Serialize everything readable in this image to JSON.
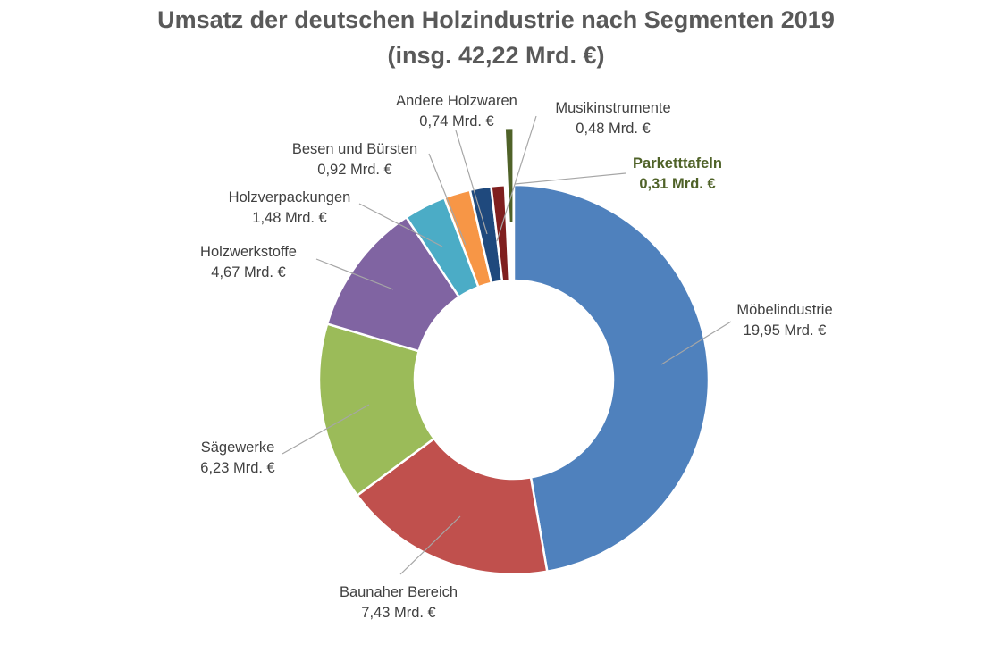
{
  "chart_data": {
    "type": "pie",
    "variant": "doughnut",
    "title": "Umsatz der deutschen Holzindustrie nach Segmenten 2019",
    "subtitle": "(insg. 42,22 Mrd. €)",
    "unit": "Mrd. €",
    "legend": "none",
    "slices": [
      {
        "name": "Möbelindustrie",
        "value": 19.95,
        "label": "19,95 Mrd. €",
        "color": "#4F81BD"
      },
      {
        "name": "Baunaher Bereich",
        "value": 7.43,
        "label": "7,43 Mrd. €",
        "color": "#C0504D"
      },
      {
        "name": "Sägewerke",
        "value": 6.23,
        "label": "6,23 Mrd. €",
        "color": "#9BBB59"
      },
      {
        "name": "Holzwerkstoffe",
        "value": 4.67,
        "label": "4,67 Mrd. €",
        "color": "#8064A2"
      },
      {
        "name": "Holzverpackungen",
        "value": 1.48,
        "label": "1,48 Mrd. €",
        "color": "#4BACC6"
      },
      {
        "name": "Besen und Bürsten",
        "value": 0.92,
        "label": "0,92 Mrd. €",
        "color": "#F79646"
      },
      {
        "name": "Andere Holzwaren",
        "value": 0.74,
        "label": "0,74 Mrd. €",
        "color": "#1F497D"
      },
      {
        "name": "Musikinstrumente",
        "value": 0.48,
        "label": "0,48 Mrd. €",
        "color": "#7F1F1F"
      },
      {
        "name": "Parketttafeln",
        "value": 0.31,
        "label": "0,31 Mrd. €",
        "color": "#4F6228",
        "exploded": true,
        "highlighted": true
      }
    ]
  }
}
